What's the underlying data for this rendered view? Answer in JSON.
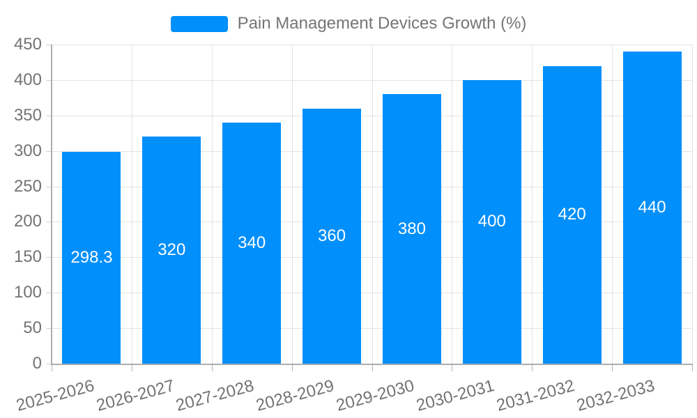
{
  "legend": {
    "label": "Pain Management Devices Growth (%)",
    "swatch_color": "#008FFB",
    "position": "top-center"
  },
  "chart_data": {
    "type": "bar",
    "title": "Pain Management Devices Growth (%)",
    "categories": [
      "2025-2026",
      "2026-2027",
      "2027-2028",
      "2028-2029",
      "2029-2030",
      "2030-2031",
      "2031-2032",
      "2032-2033"
    ],
    "values": [
      298.3,
      320,
      340,
      360,
      380,
      400,
      420,
      440
    ],
    "value_labels": [
      "298.3",
      "320",
      "340",
      "360",
      "380",
      "400",
      "420",
      "440"
    ],
    "xlabel": "",
    "ylabel": "",
    "ylim": [
      0,
      450
    ],
    "ytick_step": 50,
    "yticks": [
      "0",
      "50",
      "100",
      "150",
      "200",
      "250",
      "300",
      "350",
      "400",
      "450"
    ],
    "grid": true,
    "grid_vertical": true,
    "legend_position": "top-center",
    "x_label_rotation_deg": -15,
    "colors": {
      "bar": "#008FFB",
      "value_label": "#FFFFFF",
      "axis_text": "#737373",
      "title_text": "#757575",
      "grid": "#E3E3E3",
      "axis_line": "#ADADAD",
      "background": "#FFFFFF"
    }
  }
}
